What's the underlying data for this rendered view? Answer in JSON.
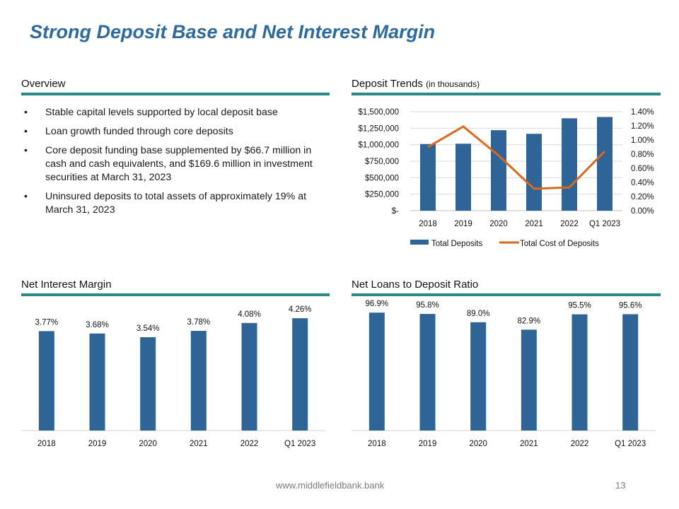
{
  "page": {
    "title": "Strong Deposit Base and Net Interest Margin",
    "footer_url": "www.middlefieldbank.bank",
    "page_number": "13"
  },
  "overview": {
    "heading": "Overview",
    "bullets": [
      "Stable capital levels supported by local deposit base",
      "Loan growth funded through core deposits",
      "Core deposit funding base supplemented by $66.7 million in cash and cash equivalents, and $169.6 million in investment securities at March 31, 2023",
      "Uninsured deposits to total assets of approximately 19% at March 31, 2023"
    ]
  },
  "sections": {
    "deposit_trends": "Deposit Trends",
    "deposit_trends_unit": "(in thousands)",
    "nim": "Net Interest Margin",
    "ltd": "Net Loans to Deposit Ratio"
  },
  "colors": {
    "bar": "#2f6497",
    "line": "#d9691e",
    "rule": "#2b8a87",
    "title": "#2e6a9e"
  },
  "chart_data": [
    {
      "id": "deposit-trends",
      "type": "bar",
      "categories": [
        "2018",
        "2019",
        "2020",
        "2021",
        "2022",
        "Q1 2023"
      ],
      "series": [
        {
          "name": "Total Deposits",
          "type": "bar",
          "axis": "left",
          "values": [
            1010000,
            1015000,
            1220000,
            1165000,
            1400000,
            1420000
          ]
        },
        {
          "name": "Total Cost of Deposits",
          "type": "line",
          "axis": "right",
          "values": [
            0.9,
            1.19,
            0.78,
            0.31,
            0.33,
            0.84
          ]
        }
      ],
      "y_left": {
        "range": [
          0,
          1500000
        ],
        "ticks": [
          "$-",
          "$250,000",
          "$500,000",
          "$750,000",
          "$1,000,000",
          "$1,250,000",
          "$1,500,000"
        ]
      },
      "y_right": {
        "range": [
          0,
          1.4
        ],
        "ticks": [
          "0.00%",
          "0.20%",
          "0.40%",
          "0.60%",
          "0.80%",
          "1.00%",
          "1.20%",
          "1.40%"
        ]
      },
      "grid": true,
      "legend": "bottom"
    },
    {
      "id": "net-interest-margin",
      "type": "bar",
      "categories": [
        "2018",
        "2019",
        "2020",
        "2021",
        "2022",
        "Q1 2023"
      ],
      "values": [
        3.77,
        3.68,
        3.54,
        3.78,
        4.08,
        4.26
      ],
      "data_labels": [
        "3.77%",
        "3.68%",
        "3.54%",
        "3.78%",
        "4.08%",
        "4.26%"
      ],
      "ylim": [
        0,
        4.8
      ],
      "grid": false
    },
    {
      "id": "net-loans-to-deposit",
      "type": "bar",
      "categories": [
        "2018",
        "2019",
        "2020",
        "2021",
        "2022",
        "Q1 2023"
      ],
      "values": [
        96.9,
        95.8,
        89.0,
        82.9,
        95.5,
        95.6
      ],
      "data_labels": [
        "96.9%",
        "95.8%",
        "89.0%",
        "82.9%",
        "95.5%",
        "95.6%"
      ],
      "ylim": [
        0,
        104
      ],
      "grid": false
    }
  ]
}
